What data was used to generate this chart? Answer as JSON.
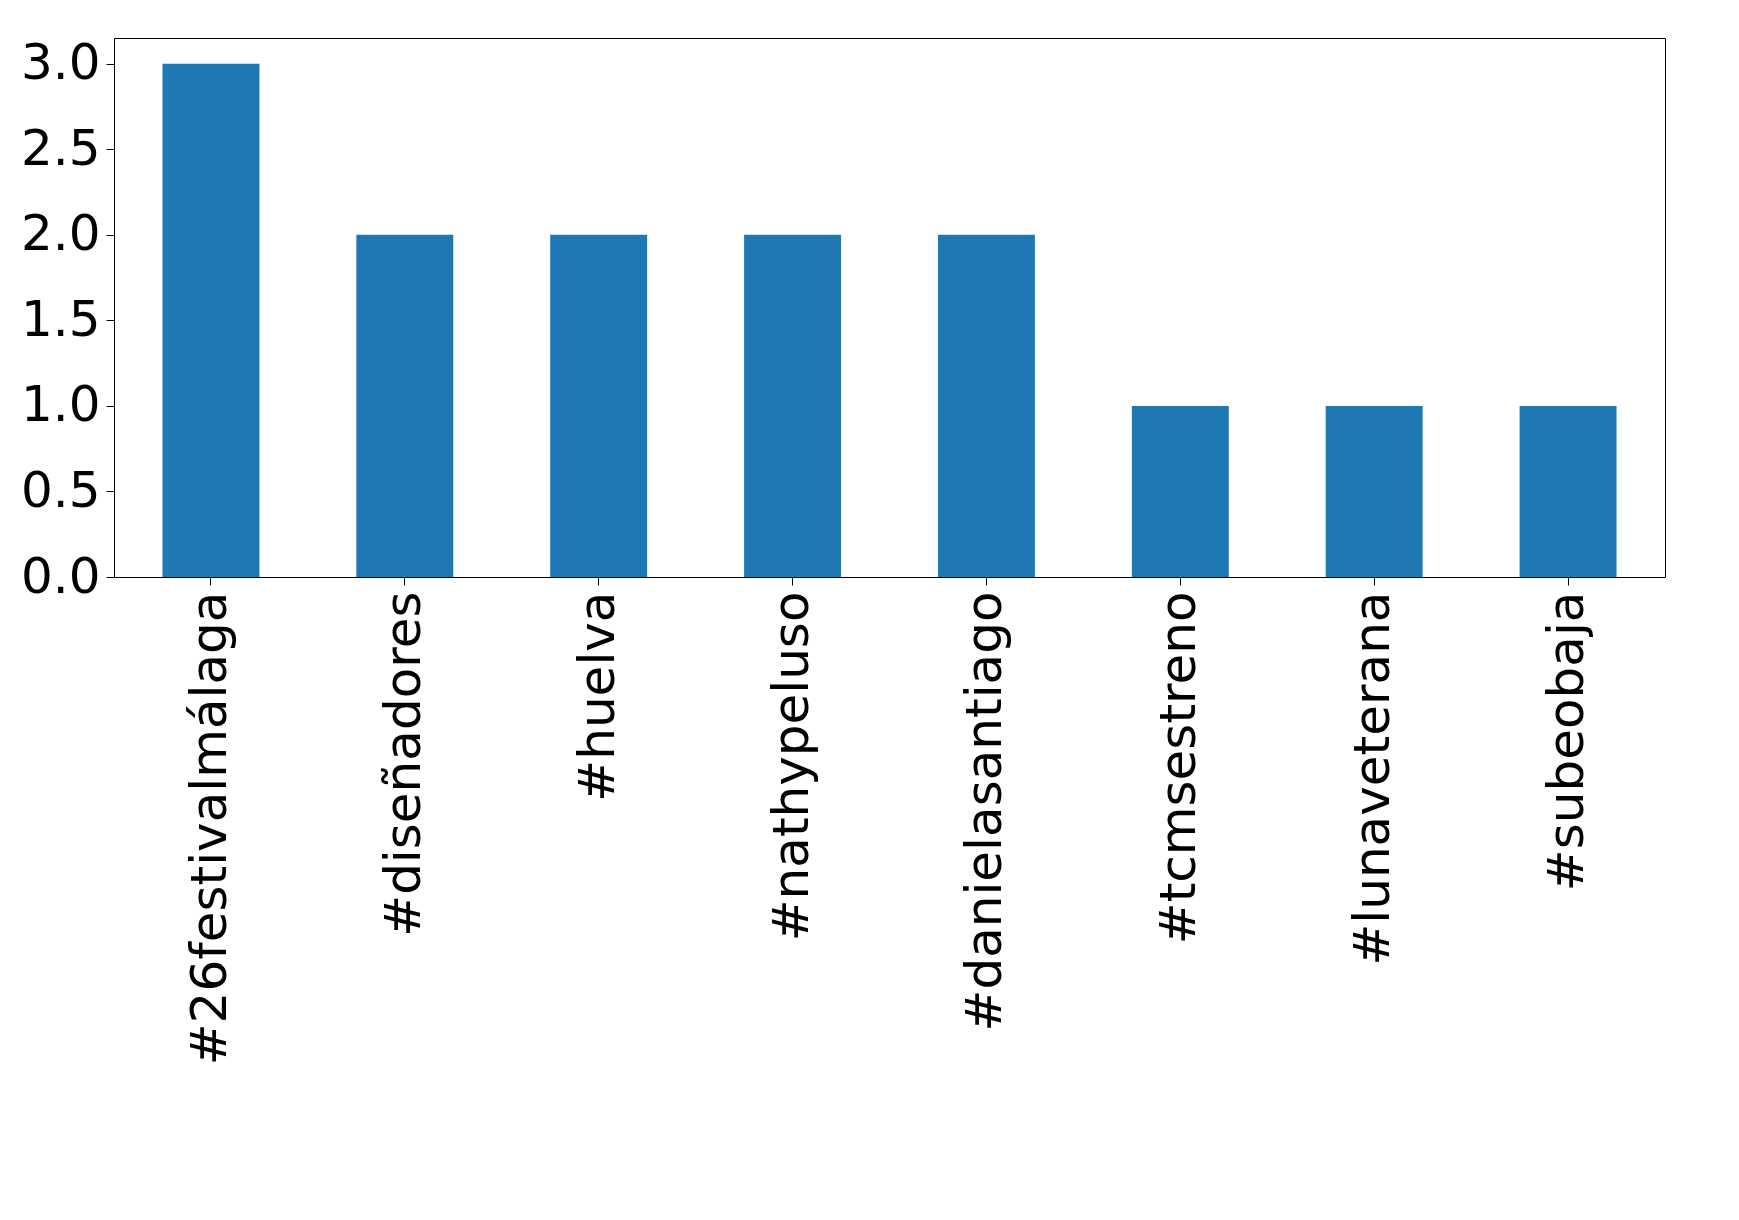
{
  "chart_data": {
    "type": "bar",
    "categories": [
      "#26festivalmálaga",
      "#diseñadores",
      "#huelva",
      "#nathypeluso",
      "#danielasantiago",
      "#tcmsestreno",
      "#lunaveterana",
      "#subeobaja"
    ],
    "values": [
      3,
      2,
      2,
      2,
      2,
      1,
      1,
      1
    ],
    "color": "#1f77b4",
    "ylim": [
      0,
      3.15
    ],
    "yticks": [
      {
        "value": 0,
        "label": "0.0"
      },
      {
        "value": 0.5,
        "label": "0.5"
      },
      {
        "value": 1,
        "label": "1.0"
      },
      {
        "value": 1.5,
        "label": "1.5"
      },
      {
        "value": 2,
        "label": "2.0"
      },
      {
        "value": 2.5,
        "label": "2.5"
      },
      {
        "value": 3,
        "label": "3.0"
      }
    ],
    "grid": false
  }
}
